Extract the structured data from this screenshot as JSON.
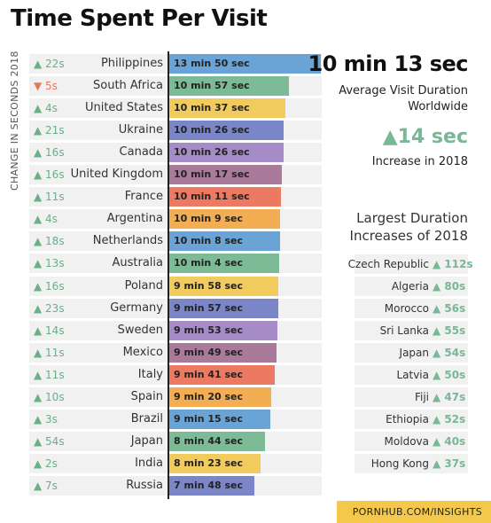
{
  "title": "Time Spent Per Visit",
  "y_axis_label": "CHANGE IN SECONDS 2018",
  "summary": {
    "average": "10 min 13 sec",
    "average_label": "Average Visit Duration Worldwide",
    "increase": "14 sec",
    "increase_label": "Increase in 2018"
  },
  "largest_increases_title": "Largest Duration Increases of 2018",
  "footer": "PORNHUB.COM/INSIGHTS",
  "colors": {
    "up": "#6aaf86",
    "down": "#e8775a",
    "accent_yellow": "#f4c94b"
  },
  "chart_data": {
    "type": "bar",
    "orientation": "horizontal",
    "categories": [
      "Philippines",
      "South Africa",
      "United States",
      "Ukraine",
      "Canada",
      "United Kingdom",
      "France",
      "Argentina",
      "Netherlands",
      "Australia",
      "Poland",
      "Germany",
      "Sweden",
      "Mexico",
      "Italy",
      "Spain",
      "Brazil",
      "Japan",
      "India",
      "Russia"
    ],
    "value_labels": [
      "13 min 50 sec",
      "10 min 57 sec",
      "10 min 37 sec",
      "10 min 26 sec",
      "10 min 26 sec",
      "10 min 17 sec",
      "10 min 11 sec",
      "10 min 9 sec",
      "10 min 8 sec",
      "10 min 4 sec",
      "9 min 58 sec",
      "9 min 57 sec",
      "9 min 53 sec",
      "9 min 49 sec",
      "9 min 41 sec",
      "9 min 20 sec",
      "9 min 15 sec",
      "8 min 44 sec",
      "8 min 23 sec",
      "7 min 48 sec"
    ],
    "values_seconds": [
      830,
      657,
      637,
      626,
      626,
      617,
      611,
      609,
      608,
      604,
      598,
      597,
      593,
      589,
      581,
      560,
      555,
      524,
      503,
      468
    ],
    "changes": [
      "22s",
      "5s",
      "4s",
      "21s",
      "16s",
      "16s",
      "11s",
      "4s",
      "18s",
      "13s",
      "16s",
      "23s",
      "14s",
      "11s",
      "11s",
      "10s",
      "3s",
      "54s",
      "2s",
      "7s"
    ],
    "change_direction": [
      "up",
      "down",
      "up",
      "up",
      "up",
      "up",
      "up",
      "up",
      "up",
      "up",
      "up",
      "up",
      "up",
      "up",
      "up",
      "up",
      "up",
      "up",
      "up",
      "up"
    ],
    "bar_colors": [
      "#6aa4d6",
      "#7dbb96",
      "#f1cb5e",
      "#7a86c8",
      "#a58cc6",
      "#a97a9a",
      "#ec7a62",
      "#f3ae54",
      "#6aa4d6",
      "#7dbb96",
      "#f1cb5e",
      "#7a86c8",
      "#a58cc6",
      "#a97a9a",
      "#ec7a62",
      "#f3ae54",
      "#6aa4d6",
      "#7dbb96",
      "#f1cb5e",
      "#7a86c8"
    ],
    "largest_increases": [
      {
        "country": "Czech Republic",
        "value": "112s"
      },
      {
        "country": "Algeria",
        "value": "80s"
      },
      {
        "country": "Morocco",
        "value": "56s"
      },
      {
        "country": "Sri Lanka",
        "value": "55s"
      },
      {
        "country": "Japan",
        "value": "54s"
      },
      {
        "country": "Latvia",
        "value": "50s"
      },
      {
        "country": "Fiji",
        "value": "47s"
      },
      {
        "country": "Ethiopia",
        "value": "52s"
      },
      {
        "country": "Moldova",
        "value": "40s"
      },
      {
        "country": "Hong Kong",
        "value": "37s"
      }
    ]
  }
}
